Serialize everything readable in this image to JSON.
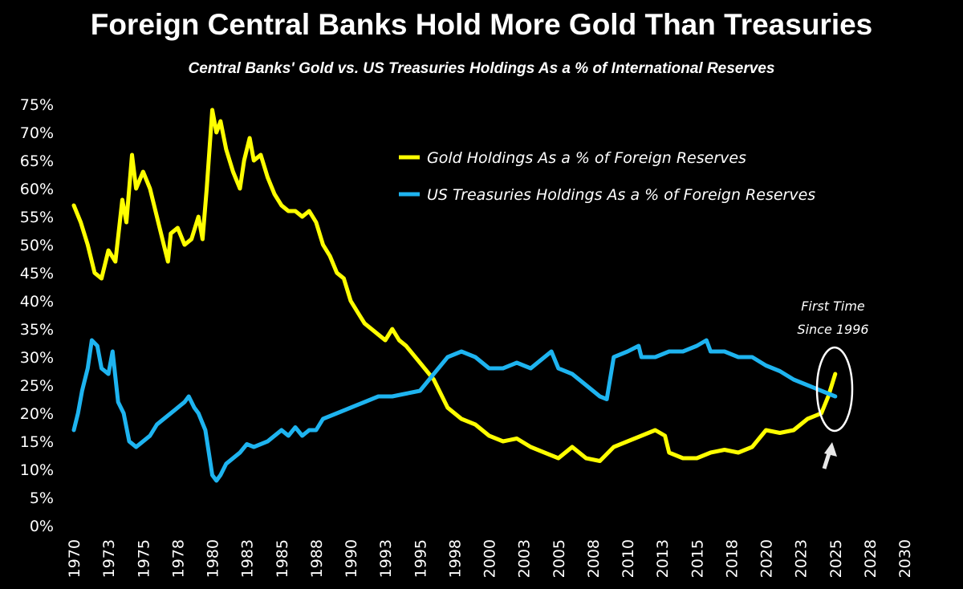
{
  "chart_data": {
    "type": "line",
    "title": "Foreign Central Banks Hold More Gold Than Treasuries",
    "subtitle": "Central Banks' Gold vs. US Treasuries Holdings As a % of International Reserves",
    "xlabel": "",
    "ylabel": "",
    "xlim": [
      1970,
      2030
    ],
    "ylim": [
      0,
      75
    ],
    "grid": false,
    "legend_position": "top-center",
    "y_ticks": [
      "0%",
      "5%",
      "10%",
      "15%",
      "20%",
      "25%",
      "30%",
      "35%",
      "40%",
      "45%",
      "50%",
      "55%",
      "60%",
      "65%",
      "70%",
      "75%"
    ],
    "x_ticks": [
      "1970",
      "1973",
      "1975",
      "1978",
      "1980",
      "1983",
      "1985",
      "1988",
      "1990",
      "1993",
      "1995",
      "1998",
      "2000",
      "2003",
      "2005",
      "2008",
      "2010",
      "2013",
      "2015",
      "2018",
      "2020",
      "2023",
      "2025",
      "2028",
      "2030"
    ],
    "series": [
      {
        "name": "Gold Holdings As a % of Foreign Reserves",
        "color": "#ffff00",
        "x": [
          1970.0,
          1970.5,
          1971.0,
          1971.5,
          1972.0,
          1972.5,
          1973.0,
          1973.5,
          1973.8,
          1974.2,
          1974.5,
          1975.0,
          1975.5,
          1976.0,
          1976.5,
          1976.8,
          1977.0,
          1977.5,
          1978.0,
          1978.5,
          1979.0,
          1979.3,
          1979.6,
          1980.0,
          1980.3,
          1980.6,
          1981.0,
          1981.5,
          1982.0,
          1982.3,
          1982.7,
          1983.0,
          1983.5,
          1984.0,
          1984.5,
          1985.0,
          1985.5,
          1986.0,
          1986.5,
          1987.0,
          1987.5,
          1988.0,
          1988.5,
          1989.0,
          1989.5,
          1990.0,
          1990.5,
          1991.0,
          1991.5,
          1992.0,
          1992.5,
          1993.0,
          1993.5,
          1994.0,
          1995.0,
          1996.0,
          1997.0,
          1998.0,
          1999.0,
          2000.0,
          2001.0,
          2002.0,
          2003.0,
          2004.0,
          2005.0,
          2006.0,
          2007.0,
          2008.0,
          2009.0,
          2010.0,
          2011.0,
          2012.0,
          2012.7,
          2013.0,
          2014.0,
          2015.0,
          2016.0,
          2017.0,
          2018.0,
          2019.0,
          2020.0,
          2021.0,
          2022.0,
          2023.0,
          2024.0,
          2024.5,
          2025.0
        ],
        "values": [
          57,
          54,
          50,
          45,
          44,
          49,
          47,
          58,
          54,
          66,
          60,
          63,
          60,
          55,
          50,
          47,
          52,
          53,
          50,
          51,
          55,
          51,
          60,
          74,
          70,
          72,
          67,
          63,
          60,
          65,
          69,
          65,
          66,
          62,
          59,
          57,
          56,
          56,
          55,
          56,
          54,
          50,
          48,
          45,
          44,
          40,
          38,
          36,
          35,
          34,
          33,
          35,
          33,
          32,
          29,
          26,
          21,
          19,
          18,
          16,
          15,
          15.5,
          14,
          13,
          12,
          14,
          12,
          11.5,
          14,
          15,
          16,
          17,
          16,
          13,
          12,
          12,
          13,
          13.5,
          13,
          14,
          17,
          16.5,
          17,
          19,
          20,
          23,
          27
        ]
      },
      {
        "name": "US Treasuries Holdings As a % of Foreign Reserves",
        "color": "#1eb4f0",
        "x": [
          1970.0,
          1970.3,
          1970.6,
          1971.0,
          1971.3,
          1971.7,
          1972.0,
          1972.5,
          1972.8,
          1973.2,
          1973.6,
          1974.0,
          1974.5,
          1975.0,
          1975.5,
          1976.0,
          1976.5,
          1977.0,
          1977.5,
          1978.0,
          1978.3,
          1978.7,
          1979.0,
          1979.5,
          1980.0,
          1980.3,
          1980.6,
          1981.0,
          1981.5,
          1982.0,
          1982.5,
          1983.0,
          1983.5,
          1984.0,
          1985.0,
          1985.5,
          1986.0,
          1986.5,
          1987.0,
          1987.5,
          1988.0,
          1989.0,
          1990.0,
          1991.0,
          1992.0,
          1993.0,
          1994.0,
          1995.0,
          1996.0,
          1997.0,
          1998.0,
          1999.0,
          2000.0,
          2001.0,
          2002.0,
          2003.0,
          2004.0,
          2004.5,
          2005.0,
          2006.0,
          2007.0,
          2008.0,
          2008.5,
          2009.0,
          2010.0,
          2010.8,
          2011.0,
          2012.0,
          2013.0,
          2014.0,
          2015.0,
          2015.7,
          2016.0,
          2017.0,
          2018.0,
          2019.0,
          2020.0,
          2021.0,
          2022.0,
          2023.0,
          2024.0,
          2025.0
        ],
        "values": [
          17,
          20,
          24,
          28,
          33,
          32,
          28,
          27,
          31,
          22,
          20,
          15,
          14,
          15,
          16,
          18,
          19,
          20,
          21,
          22,
          23,
          21,
          20,
          17,
          9,
          8,
          9,
          11,
          12,
          13,
          14.5,
          14,
          14.5,
          15,
          17,
          16,
          17.5,
          16,
          17,
          17,
          19,
          20,
          21,
          22,
          23,
          23,
          23.5,
          24,
          27,
          30,
          31,
          30,
          28,
          28,
          29,
          28,
          30,
          31,
          28,
          27,
          25,
          23,
          22.5,
          30,
          31,
          32,
          30,
          30,
          31,
          31,
          32,
          33,
          31,
          31,
          30,
          30,
          28.5,
          27.5,
          26,
          25,
          24,
          23
        ]
      }
    ],
    "annotations": [
      {
        "text_line1": "First Time",
        "text_line2": "Since 1996",
        "color": "#ffffff"
      }
    ]
  }
}
